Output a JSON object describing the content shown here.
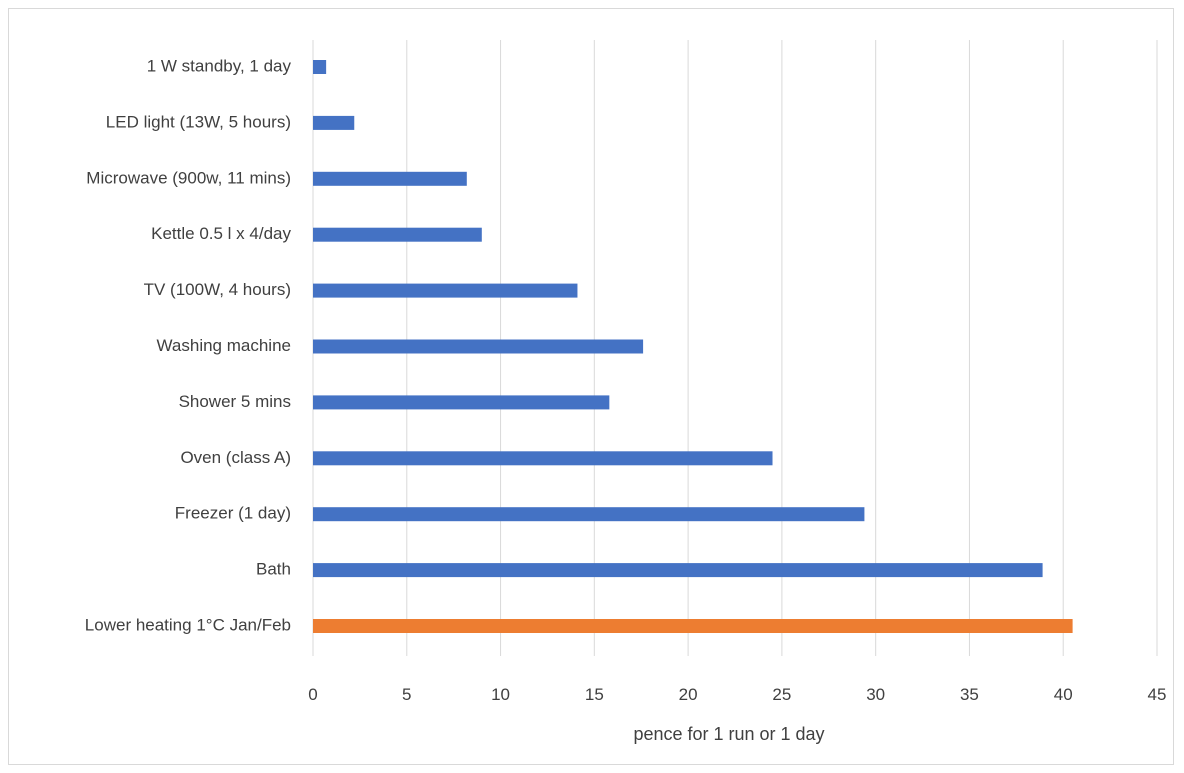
{
  "chart_data": {
    "type": "bar",
    "orientation": "horizontal",
    "categories": [
      "1 W standby, 1 day",
      "LED light (13W, 5 hours)",
      "Microwave (900w, 11 mins)",
      "Kettle 0.5 l x 4/day",
      "TV (100W, 4 hours)",
      "Washing machine",
      "Shower 5 mins",
      "Oven (class A)",
      "Freezer (1 day)",
      "Bath",
      "Lower heating 1°C Jan/Feb"
    ],
    "values": [
      0.7,
      2.2,
      8.2,
      9.0,
      14.1,
      17.6,
      15.8,
      24.5,
      29.4,
      38.9,
      40.5
    ],
    "bar_colors": [
      "#4472c4",
      "#4472c4",
      "#4472c4",
      "#4472c4",
      "#4472c4",
      "#4472c4",
      "#4472c4",
      "#4472c4",
      "#4472c4",
      "#4472c4",
      "#ed7d31"
    ],
    "xlim": [
      0,
      45
    ],
    "xticks": [
      0,
      5,
      10,
      15,
      20,
      25,
      30,
      35,
      40,
      45
    ],
    "xtick_labels": [
      "0",
      "5",
      "10",
      "15",
      "20",
      "25",
      "30",
      "35",
      "40",
      "45"
    ],
    "xlabel": "pence for 1 run or 1 day",
    "ylabel": "",
    "title": "",
    "grid": "vertical",
    "legend": "none"
  },
  "colors": {
    "primary": "#4472c4",
    "highlight": "#ed7d31",
    "grid": "#d9d9d9",
    "text": "#404040"
  }
}
